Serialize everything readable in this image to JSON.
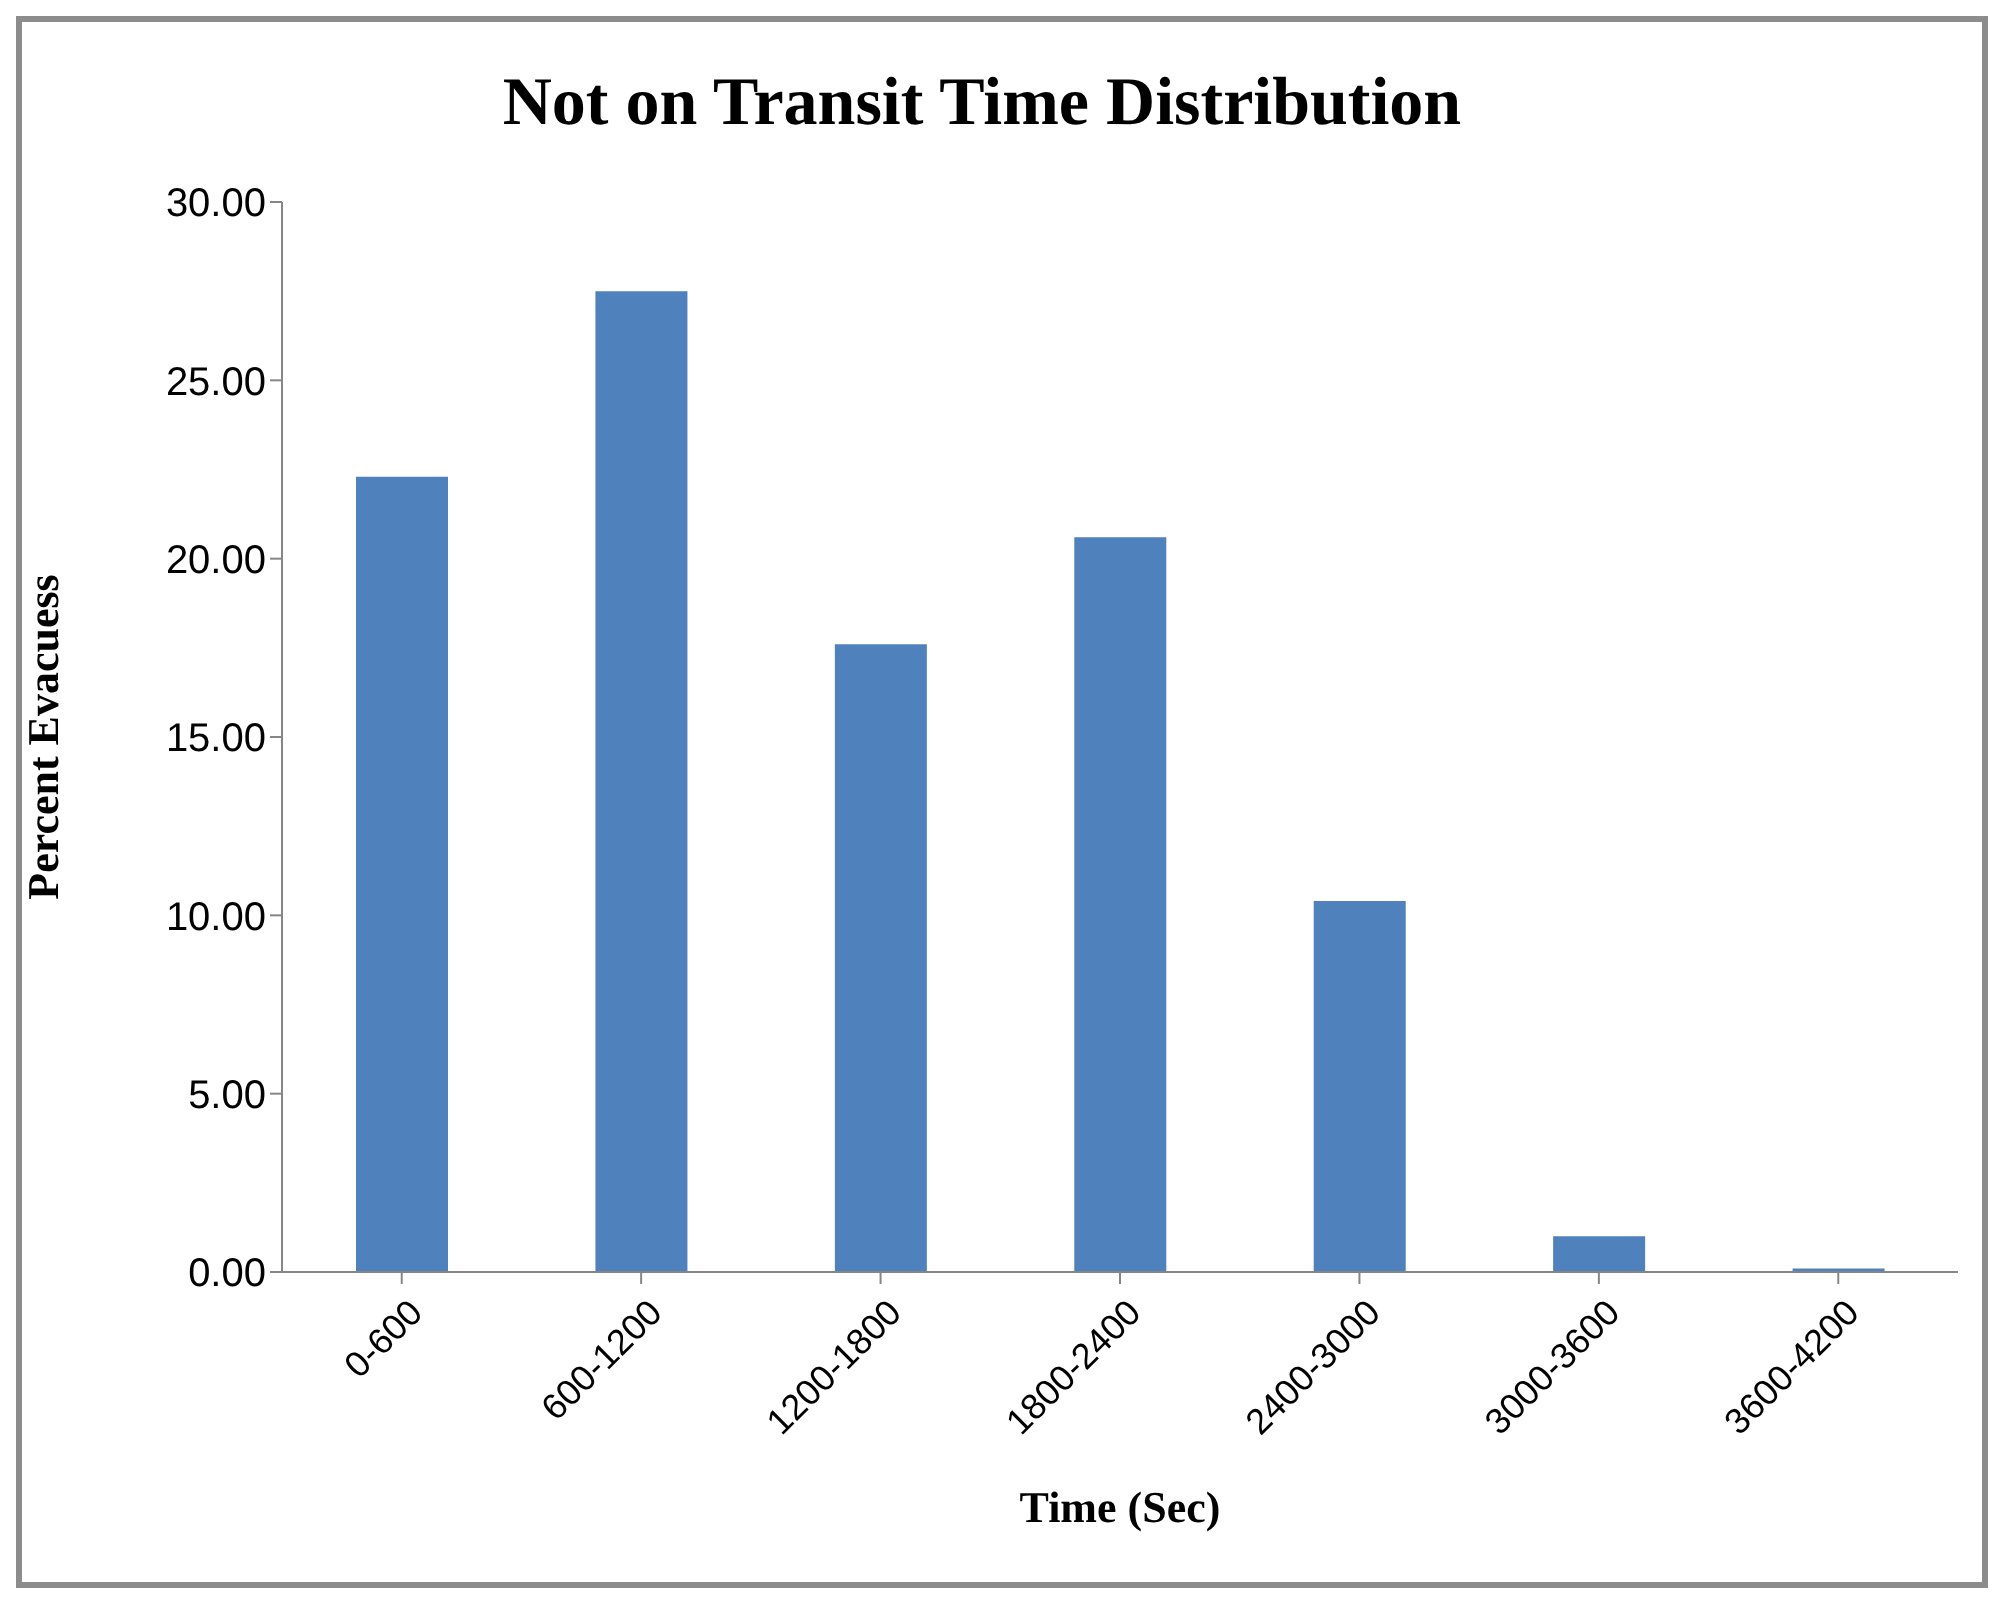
{
  "chart_data": {
    "type": "bar",
    "title": "Not on Transit Time Distribution",
    "xlabel": "Time (Sec)",
    "ylabel": "Percent Evacuess",
    "categories": [
      "0-600",
      "600-1200",
      "1200-1800",
      "1800-2400",
      "2400-3000",
      "3000-3600",
      "3600-4200"
    ],
    "values": [
      22.3,
      27.5,
      17.6,
      20.6,
      10.4,
      1.0,
      0.1
    ],
    "color": "#4f81bd",
    "ylim": [
      0,
      30
    ],
    "yticks": [
      {
        "value": 0,
        "label": "0.00"
      },
      {
        "value": 5,
        "label": "5.00"
      },
      {
        "value": 10,
        "label": "10.00"
      },
      {
        "value": 15,
        "label": "15.00"
      },
      {
        "value": 20,
        "label": "20.00"
      },
      {
        "value": 25,
        "label": "25.00"
      },
      {
        "value": 30,
        "label": "30.00"
      }
    ],
    "grid": false,
    "legend": false
  }
}
